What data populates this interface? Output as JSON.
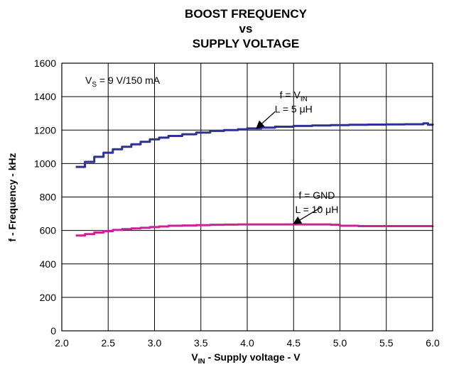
{
  "chart_data": {
    "type": "line",
    "title": [
      "BOOST FREQUENCY",
      "vs",
      "SUPPLY VOLTAGE"
    ],
    "xlabel": {
      "main": "V",
      "sub": "IN",
      "rest": " - Supply voltage - V"
    },
    "ylabel": "f - Frequency - kHz",
    "xlim": [
      2.0,
      6.0
    ],
    "ylim": [
      0,
      1600
    ],
    "xticks": [
      2.0,
      2.5,
      3.0,
      3.5,
      4.0,
      4.5,
      5.0,
      5.5,
      6.0
    ],
    "xtick_labels": [
      "2.0",
      "2.5",
      "3.0",
      "3.5",
      "4.0",
      "4.5",
      "5.0",
      "5.5",
      "6.0"
    ],
    "yticks": [
      0,
      200,
      400,
      600,
      800,
      1000,
      1200,
      1400,
      1600
    ],
    "ytick_labels": [
      "0",
      "200",
      "400",
      "600",
      "800",
      "1000",
      "1200",
      "1400",
      "1600"
    ],
    "grid": true,
    "condition": {
      "main": "V",
      "sub": "S",
      "rest": " = 9 V/150 mA"
    },
    "series": [
      {
        "color": "#2e3192",
        "x": [
          2.15,
          2.25,
          2.35,
          2.45,
          2.55,
          2.65,
          2.75,
          2.85,
          2.95,
          3.05,
          3.15,
          3.3,
          3.45,
          3.6,
          3.75,
          3.9,
          4.0,
          4.15,
          4.3,
          4.5,
          4.7,
          4.9,
          5.1,
          5.3,
          5.5,
          5.7,
          5.85,
          5.9,
          5.95,
          6.0
        ],
        "y": [
          980,
          1010,
          1040,
          1065,
          1085,
          1100,
          1115,
          1130,
          1145,
          1155,
          1165,
          1175,
          1185,
          1195,
          1200,
          1205,
          1210,
          1215,
          1220,
          1225,
          1228,
          1230,
          1232,
          1233,
          1234,
          1235,
          1235,
          1240,
          1232,
          1238
        ]
      },
      {
        "color": "#cc2299",
        "x": [
          2.15,
          2.25,
          2.35,
          2.45,
          2.55,
          2.65,
          2.75,
          2.85,
          2.95,
          3.05,
          3.15,
          3.3,
          3.45,
          3.6,
          3.75,
          3.9,
          4.0,
          4.2,
          4.4,
          4.6,
          4.8,
          4.9,
          5.0,
          5.2,
          5.4,
          5.6,
          5.8,
          6.0
        ],
        "y": [
          570,
          578,
          588,
          596,
          603,
          608,
          612,
          616,
          620,
          624,
          628,
          630,
          632,
          634,
          635,
          636,
          636,
          636,
          636,
          636,
          636,
          634,
          628,
          626,
          626,
          626,
          626,
          628
        ]
      }
    ],
    "annotations": [
      {
        "lines": [
          {
            "main": "f = V",
            "sub": "IN"
          },
          {
            "main": "L = 5 μH",
            "sub": ""
          }
        ],
        "text_at": [
          4.5,
          1390
        ],
        "arrow_from": [
          4.3,
          1310
        ],
        "arrow_to": [
          4.1,
          1210
        ]
      },
      {
        "lines": [
          {
            "main": "f = GND",
            "sub": ""
          },
          {
            "main": "L = 10 μH",
            "sub": ""
          }
        ],
        "text_at": [
          4.75,
          790
        ],
        "arrow_from": [
          4.8,
          740
        ],
        "arrow_to": [
          4.5,
          640
        ]
      }
    ]
  }
}
